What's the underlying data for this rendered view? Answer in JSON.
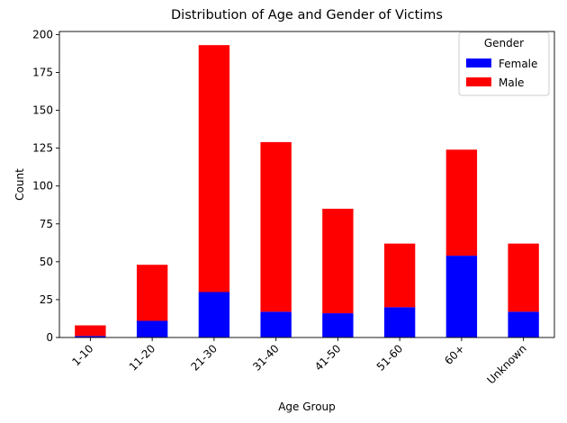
{
  "chart_data": {
    "type": "bar",
    "stacked": true,
    "title": "Distribution of Age and Gender of Victims",
    "xlabel": "Age Group",
    "ylabel": "Count",
    "categories": [
      "1-10",
      "11-20",
      "21-30",
      "31-40",
      "41-50",
      "51-60",
      "60+",
      "Unknown"
    ],
    "series": [
      {
        "name": "Female",
        "color": "#0000ff",
        "values": [
          1,
          11,
          30,
          17,
          16,
          20,
          54,
          17
        ]
      },
      {
        "name": "Male",
        "color": "#ff0000",
        "values": [
          7,
          37,
          163,
          112,
          69,
          42,
          70,
          45
        ]
      }
    ],
    "ylim": [
      0,
      202
    ],
    "yticks": [
      0,
      25,
      50,
      75,
      100,
      125,
      150,
      175,
      200
    ],
    "legend": {
      "title": "Gender",
      "position": "top-right"
    },
    "grid": false
  }
}
